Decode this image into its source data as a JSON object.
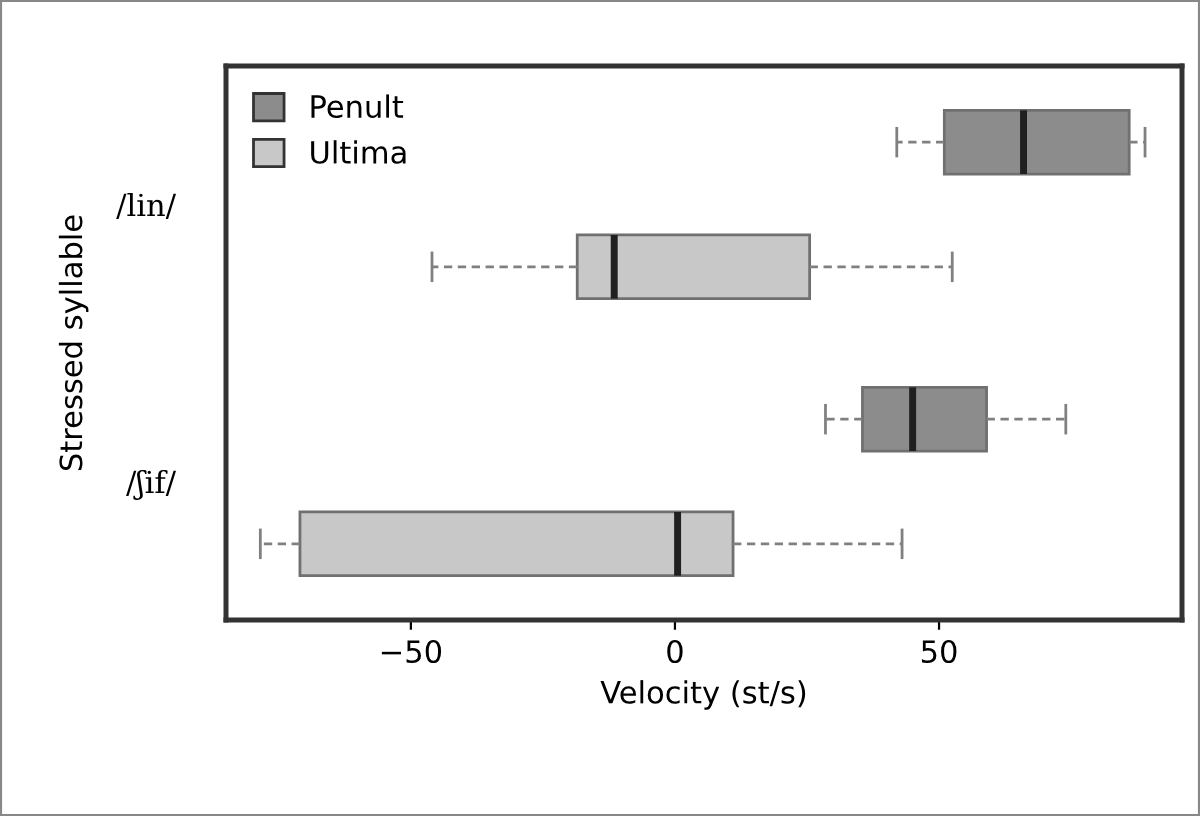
{
  "chart_data": {
    "type": "box",
    "orientation": "horizontal",
    "xlabel": "Velocity (st/s)",
    "ylabel": "Stressed syllable",
    "categories": [
      "/lin/",
      "/ʃif/"
    ],
    "xlim": [
      -85,
      96
    ],
    "xticks": [
      {
        "value": -50,
        "label": "−50"
      },
      0,
      50
    ],
    "legend": "top left",
    "grid": false,
    "series": [
      {
        "name": "Penult",
        "color": "#8c8c8c",
        "boxes": [
          {
            "low": 42,
            "q1": 51,
            "median": 66,
            "q3": 86,
            "high": 89
          },
          {
            "low": 28.5,
            "q1": 35.5,
            "median": 45,
            "q3": 59,
            "high": 74
          }
        ]
      },
      {
        "name": "Ultima",
        "color": "#c8c8c8",
        "boxes": [
          {
            "low": -46,
            "q1": -18.5,
            "median": -11.5,
            "q3": 25.5,
            "high": 52.5
          },
          {
            "low": -78.5,
            "q1": -71,
            "median": 0.5,
            "q3": 11,
            "high": 43
          }
        ]
      }
    ]
  }
}
